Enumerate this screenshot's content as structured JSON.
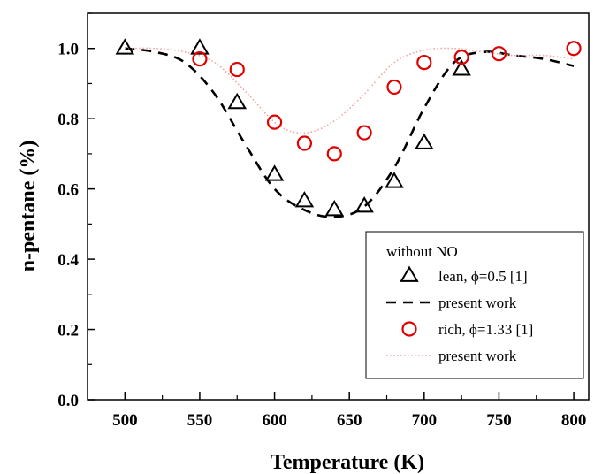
{
  "chart_data": {
    "type": "line",
    "xlabel": "Temperature (K)",
    "ylabel": "n-pentane (%)",
    "xlim": [
      475,
      810
    ],
    "ylim": [
      0,
      1.1
    ],
    "x_ticks": [
      500,
      550,
      600,
      650,
      700,
      750,
      800
    ],
    "x_tick_labels": [
      "500",
      "550",
      "600",
      "650",
      "700",
      "750",
      "800"
    ],
    "y_ticks": [
      0,
      0.2,
      0.4,
      0.6,
      0.8,
      1.0
    ],
    "y_tick_labels": [
      "0.0",
      "0.2",
      "0.4",
      "0.6",
      "0.8",
      "1.0"
    ],
    "grid": false,
    "legend": {
      "title": "without NO",
      "placement": "bottom-right",
      "entries": [
        "lean, ϕ=0.5 [1]",
        "present work",
        "rich, ϕ=1.33 [1]",
        "present work"
      ]
    },
    "series": [
      {
        "name": "lean, ϕ=0.5 [1]",
        "kind": "scatter",
        "marker": "triangle",
        "color": "#000000",
        "x": [
          500,
          550,
          575,
          600,
          620,
          640,
          660,
          680,
          700,
          725
        ],
        "y": [
          1.0,
          1.0,
          0.845,
          0.64,
          0.565,
          0.54,
          0.55,
          0.62,
          0.73,
          0.94
        ]
      },
      {
        "name": "present work",
        "kind": "line",
        "style": "dashed",
        "color": "#000000",
        "x": [
          500,
          520,
          540,
          560,
          580,
          600,
          620,
          640,
          660,
          680,
          700,
          720,
          740,
          760,
          780,
          800
        ],
        "y": [
          1.0,
          0.99,
          0.96,
          0.87,
          0.73,
          0.6,
          0.54,
          0.52,
          0.55,
          0.66,
          0.83,
          0.96,
          0.99,
          0.98,
          0.97,
          0.95
        ]
      },
      {
        "name": "rich, ϕ=1.33 [1]",
        "kind": "scatter",
        "marker": "circle",
        "color": "#e00000",
        "x": [
          550,
          575,
          600,
          620,
          640,
          660,
          680,
          700,
          725,
          750,
          800
        ],
        "y": [
          0.97,
          0.94,
          0.79,
          0.73,
          0.7,
          0.76,
          0.89,
          0.96,
          0.975,
          0.985,
          1.0
        ]
      },
      {
        "name": "present work",
        "kind": "line",
        "style": "dotted",
        "color": "#f3a3a3",
        "x": [
          500,
          520,
          540,
          560,
          580,
          600,
          615,
          630,
          645,
          660,
          680,
          700,
          720,
          740,
          760,
          780,
          800
        ],
        "y": [
          1.0,
          1.0,
          0.99,
          0.96,
          0.88,
          0.79,
          0.76,
          0.77,
          0.81,
          0.87,
          0.96,
          0.995,
          1.0,
          0.99,
          0.98,
          0.98,
          0.97
        ]
      }
    ]
  }
}
